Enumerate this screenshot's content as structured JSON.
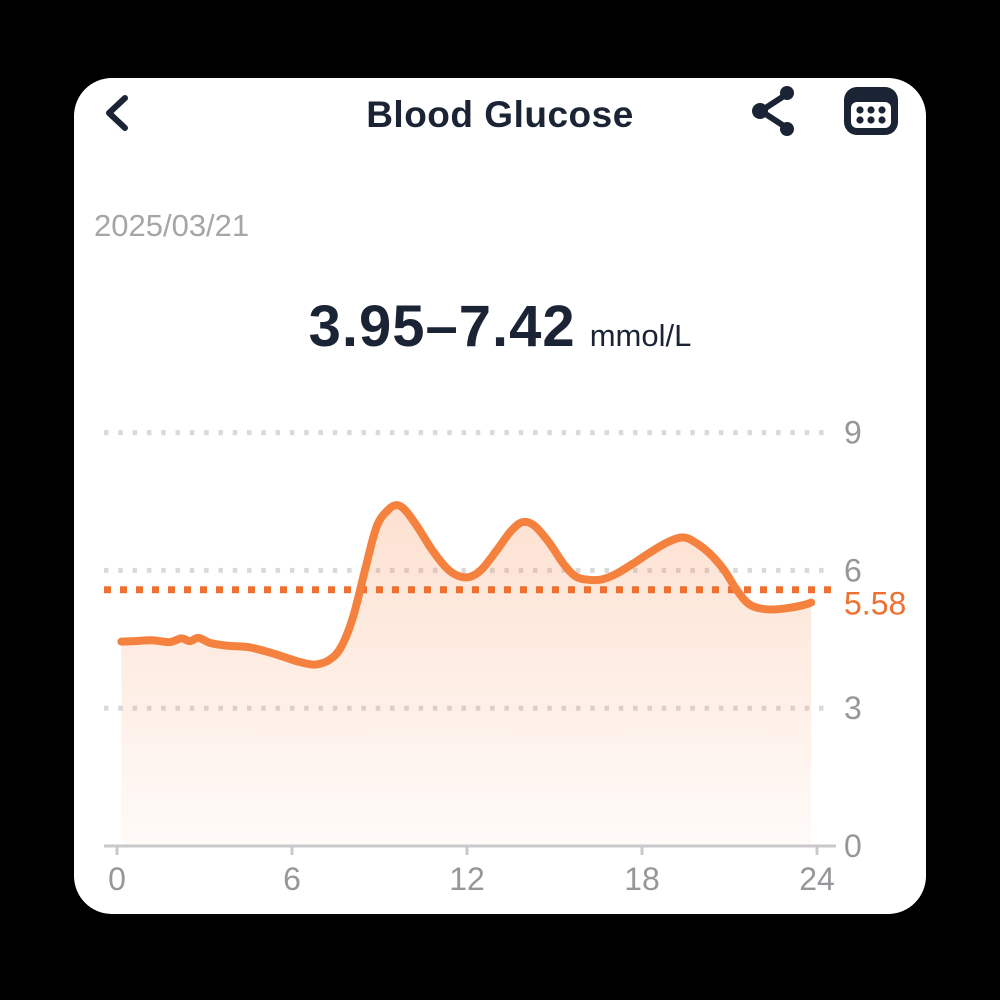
{
  "header": {
    "title": "Blood Glucose",
    "back_icon": "chevron-left-icon",
    "share_icon": "share-icon",
    "calendar_icon": "calendar-grid-icon"
  },
  "date": "2025/03/21",
  "summary": {
    "range": "3.95–7.42",
    "unit": "mmol/L"
  },
  "colors": {
    "ink": "#1b2435",
    "date_gray": "#a6a6aa",
    "tick_label_gray": "#97979b",
    "grid_gray": "#d9d9db",
    "axis_gray": "#c9c9cb",
    "line_orange": "#f5813e",
    "threshold_orange": "#ee7132",
    "card_bg": "#ffffff",
    "page_bg": "#000000"
  },
  "chart_data": {
    "type": "area",
    "title": "",
    "xlabel": "",
    "ylabel": "",
    "xlim": [
      0,
      24
    ],
    "ylim": [
      0,
      9.9
    ],
    "x_ticks": [
      0,
      6,
      12,
      18,
      24
    ],
    "y_gridlines": [
      9,
      6,
      3
    ],
    "baseline_value": 0,
    "grid": "dotted-horizontal",
    "legend": "none",
    "threshold": {
      "value": 5.58,
      "label": "5.58"
    },
    "summary_range": {
      "min": 3.95,
      "max": 7.42,
      "unit": "mmol/L"
    },
    "series": [
      {
        "name": "Blood glucose (mmol/L)",
        "points": [
          [
            0.15,
            4.45
          ],
          [
            0.6,
            4.46
          ],
          [
            1.2,
            4.48
          ],
          [
            1.8,
            4.44
          ],
          [
            2.2,
            4.52
          ],
          [
            2.5,
            4.46
          ],
          [
            2.8,
            4.53
          ],
          [
            3.2,
            4.42
          ],
          [
            3.8,
            4.36
          ],
          [
            4.5,
            4.33
          ],
          [
            5.2,
            4.22
          ],
          [
            5.8,
            4.1
          ],
          [
            6.3,
            4.0
          ],
          [
            6.8,
            3.95
          ],
          [
            7.3,
            4.06
          ],
          [
            7.7,
            4.35
          ],
          [
            8.1,
            5.0
          ],
          [
            8.5,
            6.0
          ],
          [
            8.9,
            6.95
          ],
          [
            9.3,
            7.32
          ],
          [
            9.6,
            7.42
          ],
          [
            9.9,
            7.3
          ],
          [
            10.3,
            6.95
          ],
          [
            10.8,
            6.45
          ],
          [
            11.3,
            6.05
          ],
          [
            11.7,
            5.88
          ],
          [
            12.1,
            5.86
          ],
          [
            12.5,
            6.02
          ],
          [
            13.0,
            6.42
          ],
          [
            13.5,
            6.85
          ],
          [
            13.9,
            7.05
          ],
          [
            14.3,
            6.98
          ],
          [
            14.8,
            6.62
          ],
          [
            15.3,
            6.15
          ],
          [
            15.7,
            5.88
          ],
          [
            16.1,
            5.8
          ],
          [
            16.6,
            5.8
          ],
          [
            17.1,
            5.92
          ],
          [
            17.7,
            6.15
          ],
          [
            18.3,
            6.4
          ],
          [
            18.9,
            6.62
          ],
          [
            19.4,
            6.72
          ],
          [
            19.8,
            6.62
          ],
          [
            20.3,
            6.38
          ],
          [
            20.8,
            6.02
          ],
          [
            21.2,
            5.62
          ],
          [
            21.6,
            5.3
          ],
          [
            22.0,
            5.18
          ],
          [
            22.5,
            5.15
          ],
          [
            23.0,
            5.18
          ],
          [
            23.5,
            5.24
          ],
          [
            23.8,
            5.3
          ]
        ]
      }
    ]
  }
}
